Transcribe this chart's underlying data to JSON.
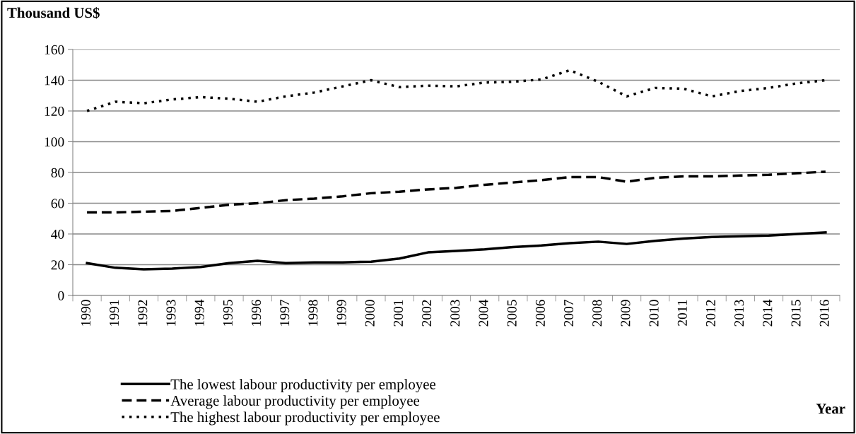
{
  "chart_data": {
    "type": "line",
    "ylabel": "Thousand US$",
    "annotations": [
      "Year"
    ],
    "categories": [
      "1990",
      "1991",
      "1992",
      "1993",
      "1994",
      "1995",
      "1996",
      "1997",
      "1998",
      "1999",
      "2000",
      "2001",
      "2002",
      "2003",
      "2004",
      "2005",
      "2006",
      "2007",
      "2008",
      "2009",
      "2010",
      "2011",
      "2012",
      "2013",
      "2014",
      "2015",
      "2016"
    ],
    "series": [
      {
        "name": "The lowest labour productivity per employee",
        "color": "#000000",
        "line_style": "solid",
        "values": [
          21,
          18,
          17,
          17.5,
          18.5,
          21,
          22.5,
          21,
          21.5,
          21.5,
          22,
          24,
          28,
          29,
          30,
          31.5,
          32.5,
          34,
          35,
          33.5,
          35.5,
          37,
          38,
          38.5,
          39,
          40,
          41
        ]
      },
      {
        "name": "Average labour productivity per employee",
        "color": "#000000",
        "line_style": "dashed",
        "values": [
          54,
          54,
          54.5,
          55,
          57,
          59,
          60,
          62,
          63,
          64.5,
          66.5,
          67.5,
          69,
          70,
          72,
          73.5,
          75,
          77,
          77,
          74,
          76.5,
          77.5,
          77.5,
          78,
          78.5,
          79.5,
          80.5
        ]
      },
      {
        "name": "The highest labour productivity per employee",
        "color": "#000000",
        "line_style": "dotted",
        "values": [
          120,
          126,
          125,
          127.5,
          129,
          128,
          126,
          129.5,
          132,
          136,
          140,
          135.5,
          136.5,
          136,
          138.5,
          139,
          140.5,
          146.5,
          139,
          129.5,
          135,
          134.5,
          129.5,
          133,
          135,
          138,
          140
        ]
      }
    ],
    "ylim": [
      0,
      160
    ],
    "yticks": [
      0,
      20,
      40,
      60,
      80,
      100,
      120,
      140,
      160
    ],
    "grid": "y",
    "legend": "bottom left",
    "marker": "none"
  }
}
